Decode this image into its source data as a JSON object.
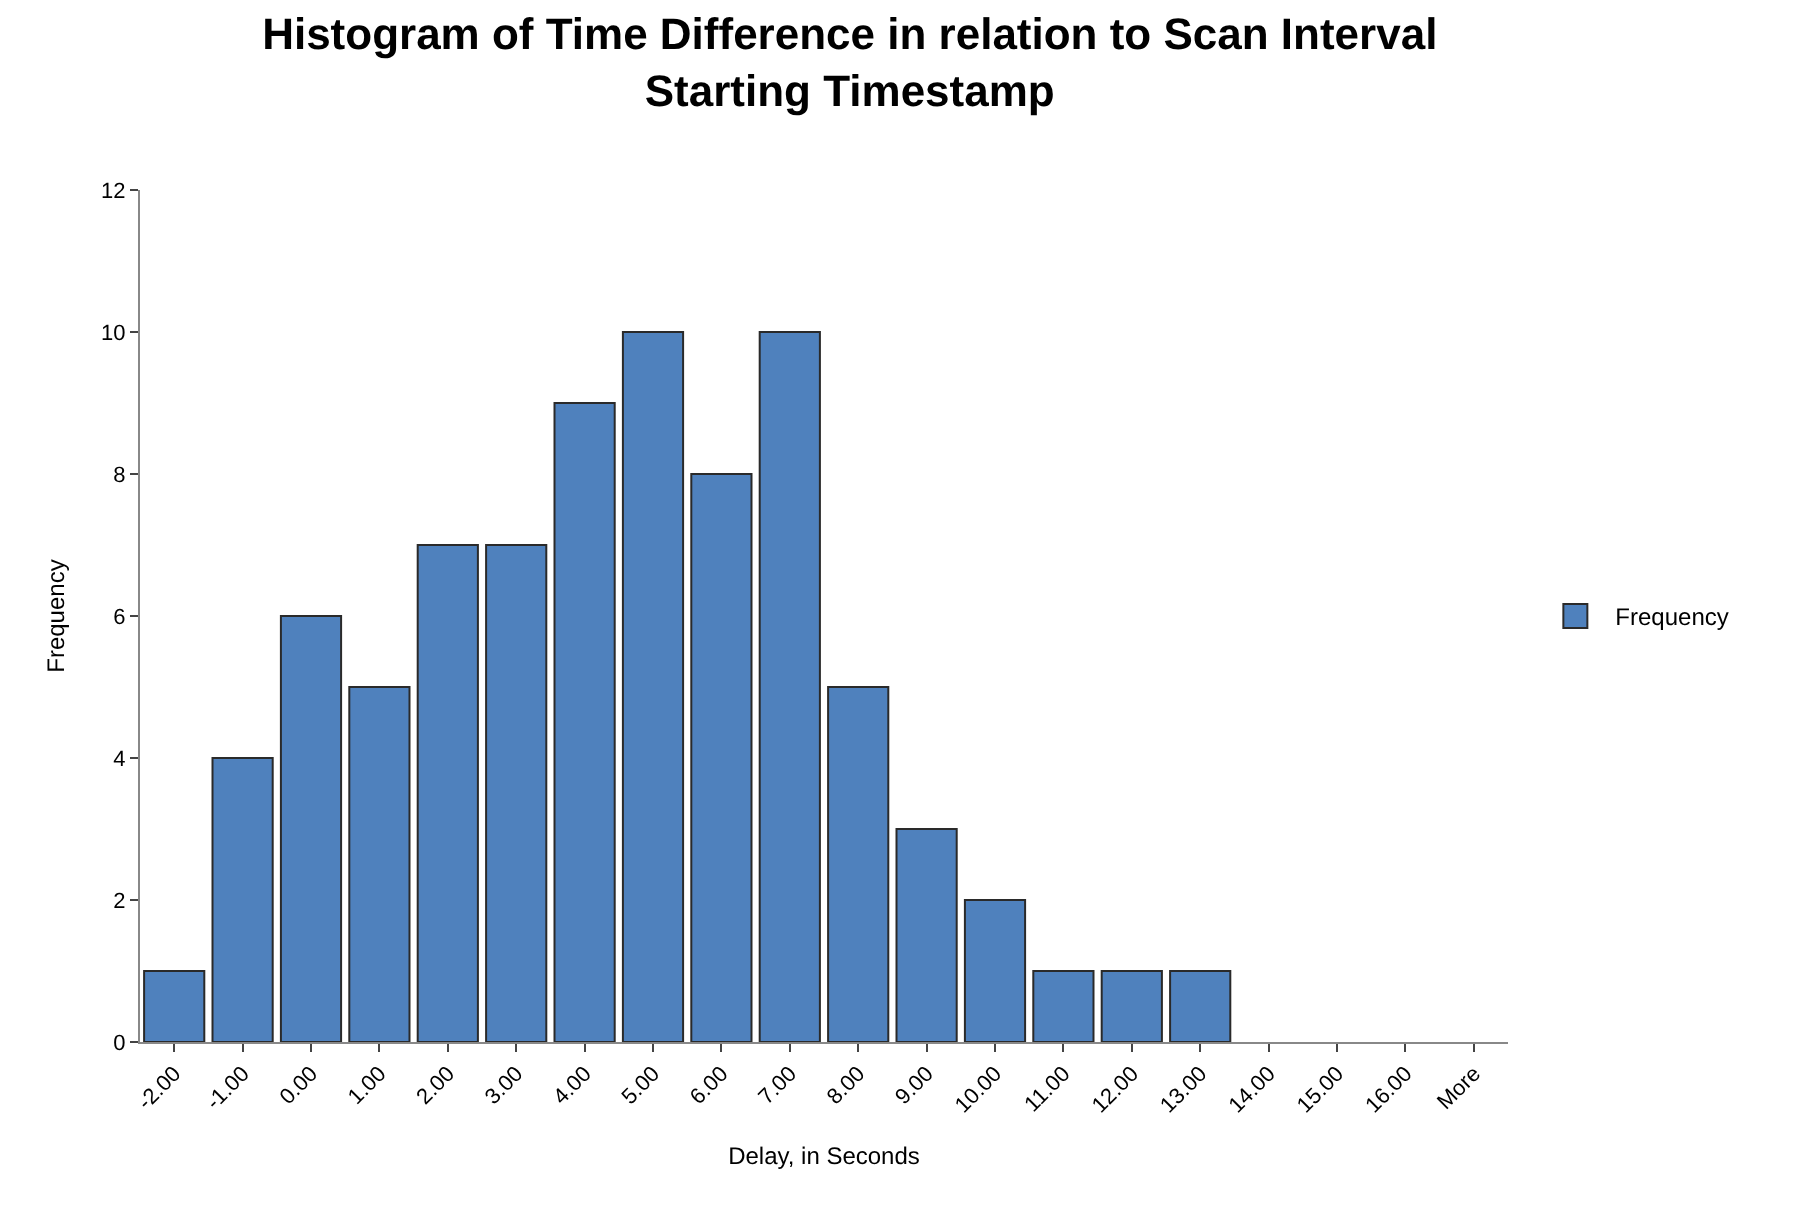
{
  "chart_data": {
    "type": "bar",
    "title": "Histogram of Time Difference in relation to Scan Interval Starting Timestamp",
    "xlabel": "Delay, in Seconds",
    "ylabel": "Frequency",
    "categories": [
      "-2.00",
      "-1.00",
      "0.00",
      "1.00",
      "2.00",
      "3.00",
      "4.00",
      "5.00",
      "6.00",
      "7.00",
      "8.00",
      "9.00",
      "10.00",
      "11.00",
      "12.00",
      "13.00",
      "14.00",
      "15.00",
      "16.00",
      "More"
    ],
    "series": [
      {
        "name": "Frequency",
        "color": "#4f81bd",
        "values": [
          1,
          4,
          6,
          5,
          7,
          7,
          9,
          10,
          8,
          10,
          5,
          3,
          2,
          1,
          1,
          1,
          0,
          0,
          0,
          0
        ]
      }
    ],
    "ylim": [
      0,
      12
    ],
    "yticks": [
      0,
      2,
      4,
      6,
      8,
      10,
      12
    ],
    "legend": "right"
  }
}
